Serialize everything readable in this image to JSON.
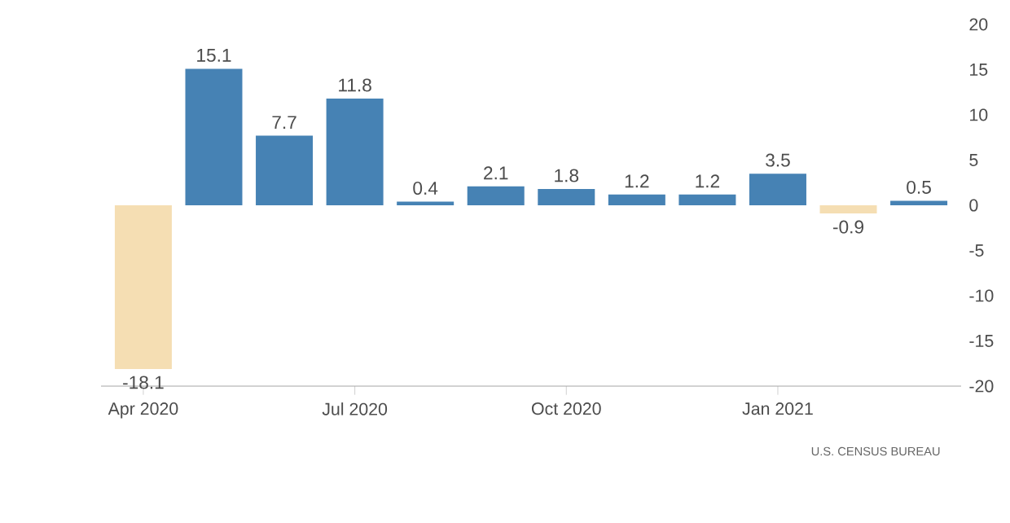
{
  "chart_data": {
    "type": "bar",
    "categories": [
      "Apr 2020",
      null,
      null,
      "Jul 2020",
      null,
      null,
      "Oct 2020",
      null,
      null,
      "Jan 2021",
      null,
      null
    ],
    "values": [
      -18.1,
      15.1,
      7.7,
      11.8,
      0.4,
      2.1,
      1.8,
      1.2,
      1.2,
      3.5,
      -0.9,
      0.5
    ],
    "colors": [
      "#f5deb3",
      "#4682b4",
      "#4682b4",
      "#4682b4",
      "#4682b4",
      "#4682b4",
      "#4682b4",
      "#4682b4",
      "#4682b4",
      "#4682b4",
      "#f5deb3",
      "#4682b4"
    ],
    "ylim": [
      -20,
      20
    ],
    "yticks": [
      -20,
      -15,
      -10,
      -5,
      0,
      5,
      10,
      15,
      20
    ],
    "data_labels": true,
    "annotations": [
      "U.S. CENSUS BUREAU"
    ]
  }
}
